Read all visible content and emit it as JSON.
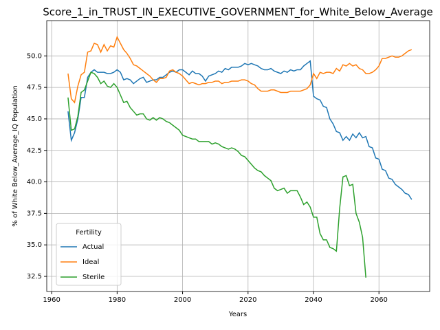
{
  "chart_data": {
    "type": "line",
    "title": "Score_1_in_TRUST_IN_EXECUTIVE_GOVERNMENT_for_White_Below_Average",
    "xlabel": "Years",
    "ylabel": "% of White Below_Average_IQ Population",
    "x": [
      1965,
      1966,
      1967,
      1968,
      1969,
      1970,
      1971,
      1972,
      1973,
      1974,
      1975,
      1976,
      1977,
      1978,
      1979,
      1980,
      1981,
      1982,
      1983,
      1984,
      1985,
      1986,
      1987,
      1988,
      1989,
      1990,
      1991,
      1992,
      1993,
      1994,
      1995,
      1996,
      1997,
      1998,
      1999,
      2000,
      2001,
      2002,
      2003,
      2004,
      2005,
      2006,
      2007,
      2008,
      2009,
      2010,
      2011,
      2012,
      2013,
      2014,
      2015,
      2016,
      2017,
      2018,
      2019,
      2020,
      2021,
      2022,
      2023,
      2024,
      2025,
      2026,
      2027,
      2028,
      2029,
      2030,
      2031,
      2032,
      2033,
      2034,
      2035,
      2036,
      2037,
      2038,
      2039,
      2040,
      2041,
      2042,
      2043,
      2044,
      2045,
      2046,
      2047,
      2048,
      2049,
      2050,
      2051,
      2052,
      2053,
      2054,
      2055,
      2056,
      2057,
      2058,
      2059,
      2060,
      2061,
      2062,
      2063,
      2064,
      2065,
      2066,
      2067,
      2068,
      2069,
      2070
    ],
    "series": [
      {
        "name": "Actual",
        "color": "#1f77b4",
        "values": [
          45.6,
          43.3,
          43.9,
          45.0,
          46.7,
          46.7,
          48.3,
          48.7,
          48.9,
          48.7,
          48.7,
          48.7,
          48.6,
          48.6,
          48.7,
          48.9,
          48.7,
          48.1,
          48.2,
          48.1,
          47.8,
          48.0,
          48.2,
          48.3,
          47.9,
          48.0,
          48.1,
          48.1,
          48.3,
          48.3,
          48.5,
          48.7,
          48.8,
          48.7,
          48.9,
          48.9,
          48.7,
          48.5,
          48.8,
          48.6,
          48.6,
          48.4,
          48.0,
          48.4,
          48.5,
          48.6,
          48.8,
          48.7,
          49.0,
          48.9,
          49.1,
          49.1,
          49.1,
          49.2,
          49.4,
          49.3,
          49.4,
          49.3,
          49.2,
          49.0,
          48.9,
          48.9,
          49.0,
          48.8,
          48.7,
          48.6,
          48.8,
          48.7,
          48.9,
          48.8,
          48.9,
          48.9,
          49.2,
          49.4,
          49.6,
          46.8,
          46.6,
          46.5,
          46.0,
          45.9,
          45.0,
          44.6,
          44.0,
          43.9,
          43.3,
          43.6,
          43.3,
          43.8,
          43.5,
          43.9,
          43.5,
          43.6,
          42.8,
          42.7,
          41.9,
          41.8,
          41.0,
          40.9,
          40.3,
          40.2,
          39.8,
          39.6,
          39.4,
          39.1,
          39.0,
          38.6
        ]
      },
      {
        "name": "Ideal",
        "color": "#ff7f0e",
        "values": [
          48.6,
          46.6,
          46.3,
          47.6,
          48.5,
          48.7,
          50.3,
          50.4,
          51.0,
          50.9,
          50.3,
          50.9,
          50.4,
          50.8,
          50.7,
          51.5,
          51.0,
          50.5,
          50.2,
          49.8,
          49.3,
          49.2,
          49.0,
          48.8,
          48.6,
          48.4,
          48.1,
          47.9,
          48.2,
          48.2,
          48.3,
          48.8,
          48.9,
          48.7,
          48.6,
          48.4,
          48.1,
          47.8,
          47.9,
          47.8,
          47.7,
          47.8,
          47.8,
          47.9,
          47.9,
          48.0,
          48.0,
          47.8,
          47.9,
          47.9,
          48.0,
          48.0,
          48.0,
          48.1,
          48.1,
          48.0,
          47.8,
          47.7,
          47.4,
          47.2,
          47.2,
          47.2,
          47.3,
          47.3,
          47.2,
          47.1,
          47.1,
          47.1,
          47.2,
          47.2,
          47.2,
          47.2,
          47.3,
          47.4,
          47.7,
          48.6,
          48.2,
          48.7,
          48.6,
          48.7,
          48.7,
          48.6,
          49.0,
          48.8,
          49.3,
          49.2,
          49.4,
          49.2,
          49.3,
          49.0,
          48.9,
          48.6,
          48.6,
          48.7,
          48.9,
          49.2,
          49.8,
          49.8,
          49.9,
          50.0,
          49.9,
          49.9,
          50.0,
          50.2,
          50.4,
          50.5
        ]
      },
      {
        "name": "Sterile",
        "color": "#2ca02c",
        "values": [
          46.7,
          44.1,
          44.2,
          45.2,
          47.1,
          47.3,
          48.0,
          48.7,
          48.6,
          48.3,
          47.8,
          48.0,
          47.6,
          47.5,
          47.8,
          47.5,
          46.9,
          46.3,
          46.4,
          45.9,
          45.6,
          45.3,
          45.4,
          45.4,
          45.0,
          44.9,
          45.1,
          44.9,
          45.1,
          45.0,
          44.8,
          44.7,
          44.5,
          44.3,
          44.1,
          43.7,
          43.6,
          43.5,
          43.4,
          43.4,
          43.2,
          43.2,
          43.2,
          43.2,
          43.0,
          43.1,
          43.0,
          42.8,
          42.7,
          42.6,
          42.7,
          42.6,
          42.4,
          42.1,
          42.0,
          41.7,
          41.4,
          41.1,
          40.9,
          40.8,
          40.5,
          40.3,
          40.1,
          39.5,
          39.3,
          39.4,
          39.5,
          39.1,
          39.3,
          39.3,
          39.3,
          38.8,
          38.2,
          38.4,
          38.0,
          37.2,
          37.2,
          35.9,
          35.4,
          35.4,
          34.8,
          34.7,
          34.5,
          37.9,
          40.4,
          40.5,
          39.7,
          39.8,
          37.5,
          36.8,
          35.6,
          32.4,
          null,
          null,
          null,
          null,
          null,
          null,
          null,
          null,
          null,
          null,
          null,
          null,
          null,
          null
        ]
      }
    ],
    "xlim": [
      1958.5,
      2075.5
    ],
    "ylim": [
      31.3,
      52.8
    ],
    "xticks": [
      1960,
      1980,
      2000,
      2020,
      2040,
      2060
    ],
    "yticks": [
      32.5,
      {
        "value": 35,
        "label": "35.0"
      },
      37.5,
      {
        "value": 40,
        "label": "40.0"
      },
      42.5,
      {
        "value": 45,
        "label": "45.0"
      },
      47.5,
      {
        "value": 50,
        "label": "50.0"
      }
    ],
    "grid": true,
    "legend": {
      "title": "Fertility",
      "loc": "lower left"
    }
  }
}
